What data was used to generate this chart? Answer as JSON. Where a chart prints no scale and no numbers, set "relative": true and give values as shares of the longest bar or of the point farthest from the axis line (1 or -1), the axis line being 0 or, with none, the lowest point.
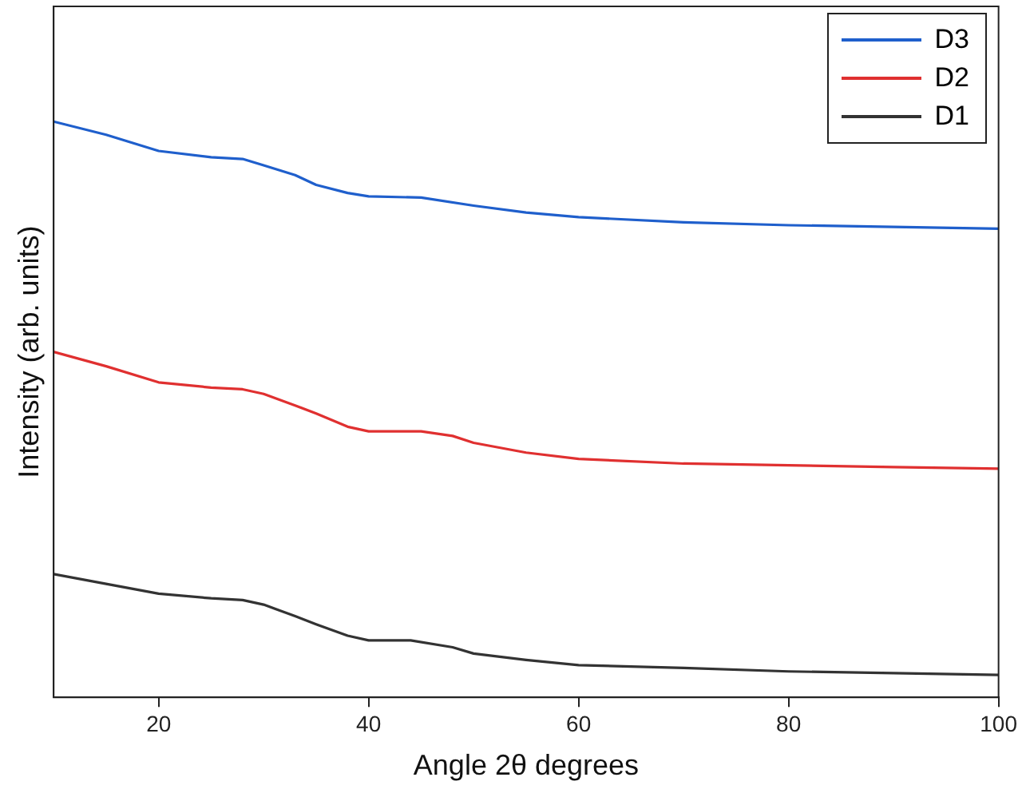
{
  "chart_data": {
    "type": "line",
    "relative": true,
    "xlabel": "Angle 2θ degrees",
    "ylabel": "Intensity (arb. units)",
    "xlim": [
      10,
      100
    ],
    "xticks": [
      20,
      40,
      60,
      80,
      100
    ],
    "legend": "top right",
    "grid": false,
    "marker": "none",
    "line_style": "solid",
    "series": [
      {
        "name": "D3",
        "color": "#1f5fcc",
        "x": [
          10,
          15,
          20,
          25,
          28,
          30,
          33,
          35,
          38,
          40,
          45,
          50,
          55,
          60,
          70,
          80,
          90,
          100
        ],
        "values": [
          1.0,
          0.977,
          0.949,
          0.938,
          0.935,
          0.924,
          0.907,
          0.89,
          0.876,
          0.87,
          0.868,
          0.854,
          0.842,
          0.834,
          0.825,
          0.82,
          0.817,
          0.814
        ]
      },
      {
        "name": "D2",
        "color": "#e03030",
        "x": [
          10,
          15,
          20,
          25,
          28,
          30,
          33,
          35,
          38,
          40,
          45,
          48,
          50,
          55,
          60,
          70,
          80,
          90,
          100
        ],
        "values": [
          0.6,
          0.575,
          0.547,
          0.538,
          0.535,
          0.527,
          0.507,
          0.493,
          0.47,
          0.462,
          0.462,
          0.454,
          0.442,
          0.425,
          0.414,
          0.406,
          0.403,
          0.4,
          0.397
        ]
      },
      {
        "name": "D1",
        "color": "#333333",
        "x": [
          10,
          15,
          20,
          25,
          28,
          30,
          33,
          35,
          38,
          40,
          44,
          48,
          50,
          55,
          60,
          70,
          80,
          90,
          100
        ],
        "values": [
          0.214,
          0.197,
          0.18,
          0.172,
          0.169,
          0.161,
          0.141,
          0.127,
          0.107,
          0.099,
          0.099,
          0.087,
          0.076,
          0.065,
          0.056,
          0.051,
          0.045,
          0.042,
          0.039
        ]
      }
    ]
  }
}
